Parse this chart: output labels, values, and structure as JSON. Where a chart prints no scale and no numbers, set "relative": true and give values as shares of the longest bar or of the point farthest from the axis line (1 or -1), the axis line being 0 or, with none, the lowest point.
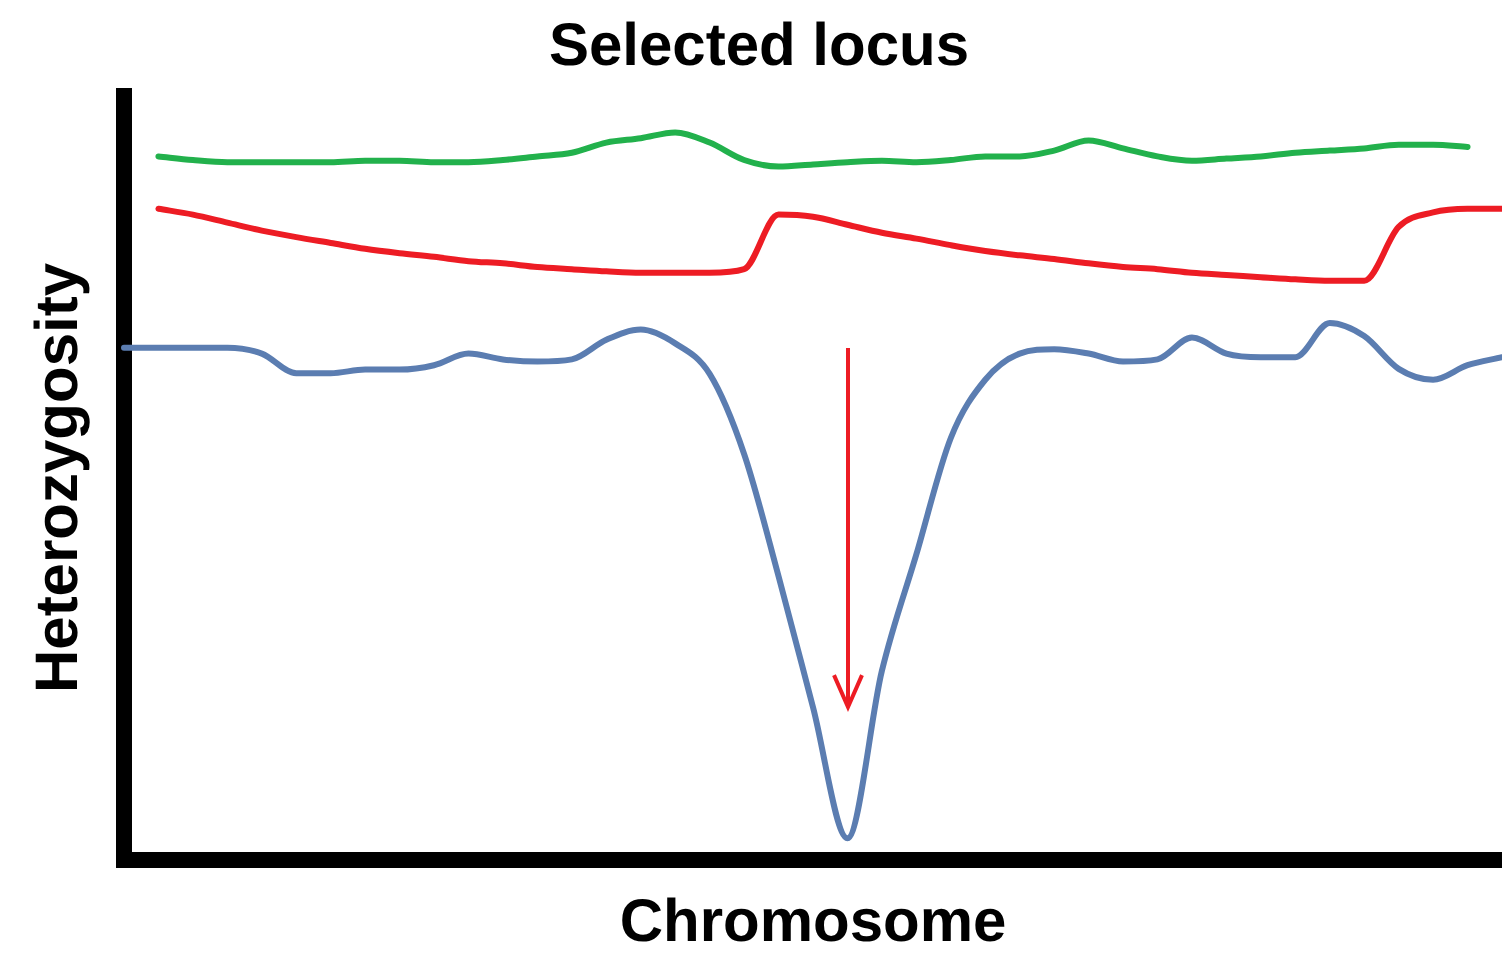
{
  "chart_data": {
    "type": "line",
    "title": "Selected locus",
    "xlabel": "Chromosome",
    "ylabel": "Heterozygosity",
    "relative": true,
    "grid": false,
    "legend": false,
    "marker": "none",
    "line_style": "solid",
    "categories": [
      null,
      null,
      null,
      null,
      null,
      null,
      null,
      null,
      null,
      null,
      null,
      null,
      null,
      null,
      null,
      null,
      null,
      null,
      null,
      null,
      null,
      null,
      null,
      null,
      null,
      null,
      null,
      null,
      null,
      null,
      null,
      null,
      null,
      null,
      null,
      null,
      null,
      null,
      null,
      null,
      null
    ],
    "series": [
      {
        "color": "#22b14c",
        "values": [
          null,
          0.967,
          0.962,
          0.959,
          0.959,
          0.959,
          0.959,
          0.961,
          0.961,
          0.959,
          0.959,
          0.962,
          0.967,
          0.972,
          0.986,
          0.992,
          1.0,
          0.986,
          0.962,
          0.953,
          0.956,
          0.959,
          0.961,
          0.959,
          0.962,
          0.967,
          0.967,
          0.975,
          0.989,
          0.978,
          0.967,
          0.961,
          0.964,
          0.967,
          0.972,
          0.975,
          0.978,
          0.983,
          0.983,
          0.98,
          null
        ]
      },
      {
        "color": "#ed1c24",
        "values": [
          null,
          0.895,
          0.887,
          0.876,
          0.865,
          0.856,
          0.848,
          0.84,
          0.834,
          0.829,
          0.823,
          0.82,
          0.815,
          0.812,
          0.809,
          0.807,
          0.807,
          0.807,
          0.812,
          0.887,
          0.884,
          0.873,
          0.862,
          0.854,
          0.845,
          0.837,
          0.831,
          0.826,
          0.82,
          0.815,
          0.812,
          0.807,
          0.804,
          0.801,
          0.798,
          0.796,
          0.796,
          0.87,
          0.89,
          0.895,
          0.895
        ]
      },
      {
        "color": "#5b7db1",
        "values": [
          0.704,
          0.704,
          0.704,
          0.704,
          0.696,
          0.669,
          0.669,
          0.674,
          0.674,
          0.68,
          0.696,
          0.688,
          0.685,
          0.688,
          0.715,
          0.729,
          0.71,
          0.668,
          0.558,
          0.39,
          0.21,
          0.03,
          0.26,
          0.42,
          0.58,
          0.66,
          0.696,
          0.702,
          0.696,
          0.685,
          0.688,
          0.718,
          0.696,
          0.691,
          0.691,
          0.738,
          0.72,
          0.675,
          0.66,
          0.68,
          0.691
        ]
      }
    ]
  }
}
